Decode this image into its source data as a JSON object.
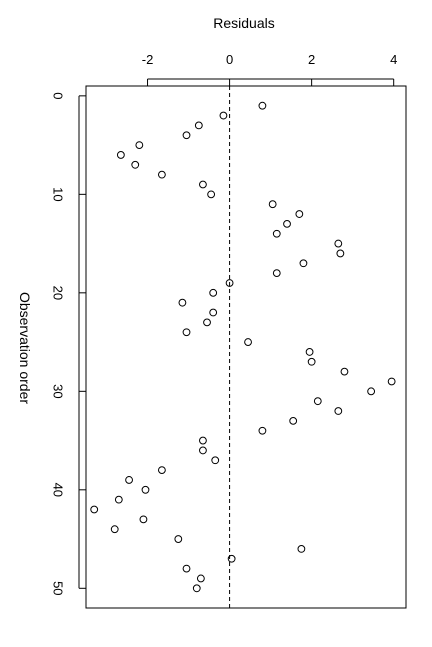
{
  "chart_data": {
    "type": "scatter",
    "title": "",
    "xlabel": "Residuals",
    "ylabel": "Observation order",
    "xlim": [
      -3.5,
      4.3
    ],
    "ylim": [
      -1,
      52
    ],
    "x_ticks": [
      -2,
      0,
      2,
      4
    ],
    "y_ticks": [
      0,
      10,
      20,
      30,
      40,
      50
    ],
    "x_tick_labels": [
      "-2",
      "0",
      "2",
      "4"
    ],
    "y_tick_labels": [
      "0",
      "10",
      "20",
      "30",
      "40",
      "50"
    ],
    "y_axis_reversed": true,
    "reference_line": {
      "x": 0,
      "style": "dashed"
    },
    "series": [
      {
        "x": [
          0.8,
          -0.15,
          -0.75,
          -1.05,
          -2.2,
          -2.65,
          -2.3,
          -1.65,
          -0.65,
          -0.45,
          1.05,
          1.7,
          1.4,
          1.15,
          2.65,
          2.7,
          1.8,
          1.15,
          0.0,
          -0.4,
          -1.15,
          -0.4,
          -0.55,
          -1.05,
          0.45,
          1.95,
          2.0,
          2.8,
          3.95,
          3.45,
          2.15,
          2.65,
          1.55,
          0.8,
          -0.65,
          -0.65,
          -0.35,
          -1.65,
          -2.45,
          -2.05,
          -2.7,
          -3.3,
          -2.1,
          -2.8,
          -1.25,
          1.75,
          0.05,
          -1.05,
          -0.7,
          -0.8
        ],
        "y": [
          1,
          2,
          3,
          4,
          5,
          6,
          7,
          8,
          9,
          10,
          11,
          12,
          13,
          14,
          15,
          16,
          17,
          18,
          19,
          20,
          21,
          22,
          23,
          24,
          25,
          26,
          27,
          28,
          29,
          30,
          31,
          32,
          33,
          34,
          35,
          36,
          37,
          38,
          39,
          40,
          41,
          42,
          43,
          44,
          45,
          46,
          47,
          48,
          49,
          50
        ]
      }
    ]
  }
}
